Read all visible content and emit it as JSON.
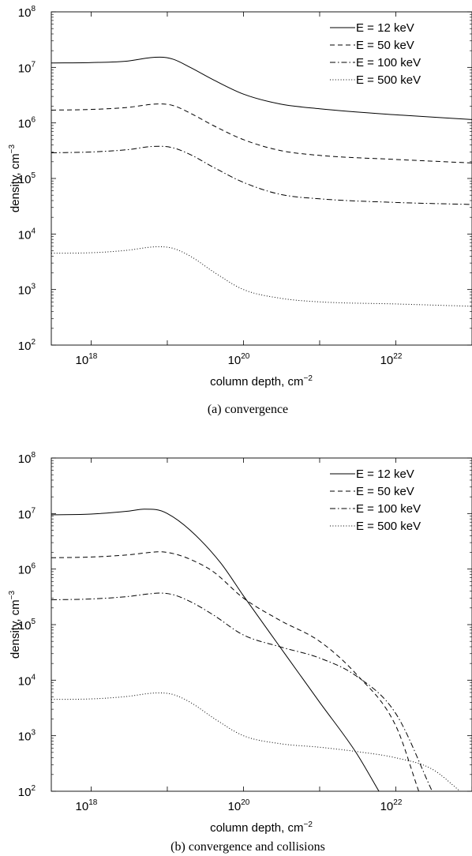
{
  "chart_data": [
    {
      "type": "line",
      "caption": "(a)  convergence",
      "xlabel": "column depth, cm",
      "xlabel_exp": "−2",
      "ylabel": "density, cm",
      "ylabel_exp": "−3",
      "xscale": "log",
      "yscale": "log",
      "xlim": [
        3e+17,
        1e+23
      ],
      "ylim": [
        100,
        100000000
      ],
      "xticks": [
        {
          "value": 1e+18,
          "base": "10",
          "exp": "18"
        },
        {
          "value": 1e+20,
          "base": "10",
          "exp": "20"
        },
        {
          "value": 1e+22,
          "base": "10",
          "exp": "22"
        }
      ],
      "yticks": [
        {
          "value": 100,
          "base": "10",
          "exp": "2"
        },
        {
          "value": 1000,
          "base": "10",
          "exp": "3"
        },
        {
          "value": 10000,
          "base": "10",
          "exp": "4"
        },
        {
          "value": 100000,
          "base": "10",
          "exp": "5"
        },
        {
          "value": 1000000,
          "base": "10",
          "exp": "6"
        },
        {
          "value": 10000000,
          "base": "10",
          "exp": "7"
        },
        {
          "value": 100000000,
          "base": "10",
          "exp": "8"
        }
      ],
      "grid": false,
      "legend_position": "top-right",
      "series": [
        {
          "name": "E = 12 keV",
          "style": "solid",
          "x": [
            3e+17,
            1e+18,
            3e+18,
            6e+18,
            8e+18,
            1.2e+19,
            2e+19,
            4e+19,
            1e+20,
            3e+20,
            1e+21,
            1e+22,
            1e+23
          ],
          "y": [
            12000000,
            12200000,
            13000000,
            15000000,
            15300000,
            14000000,
            10000000,
            6000000,
            3300000,
            2200000,
            1800000,
            1400000,
            1150000
          ]
        },
        {
          "name": "E = 50 keV",
          "style": "dashed",
          "x": [
            3e+17,
            1e+18,
            3e+18,
            6e+18,
            8e+18,
            1.2e+19,
            2e+19,
            4e+19,
            1e+20,
            3e+20,
            1e+21,
            1e+22,
            1e+23
          ],
          "y": [
            1700000,
            1750000,
            1900000,
            2150000,
            2200000,
            2050000,
            1500000,
            900000,
            500000,
            320000,
            260000,
            220000,
            190000
          ]
        },
        {
          "name": "E = 100 keV",
          "style": "dashdot",
          "x": [
            3e+17,
            1e+18,
            3e+18,
            6e+18,
            8e+18,
            1.2e+19,
            2e+19,
            4e+19,
            1e+20,
            3e+20,
            1e+21,
            1e+22,
            1e+23
          ],
          "y": [
            290000,
            300000,
            330000,
            375000,
            380000,
            355000,
            270000,
            160000,
            85000,
            52000,
            43000,
            37000,
            34000
          ]
        },
        {
          "name": "E = 500 keV",
          "style": "dotted",
          "x": [
            3e+17,
            1e+18,
            3e+18,
            6e+18,
            8e+18,
            1.2e+19,
            2e+19,
            4e+19,
            1e+20,
            3e+20,
            1e+21,
            1e+22,
            1e+23
          ],
          "y": [
            4500,
            4600,
            5100,
            5800,
            5900,
            5500,
            4000,
            2100,
            1000,
            700,
            600,
            550,
            500
          ]
        }
      ]
    },
    {
      "type": "line",
      "caption": "(b)  convergence and collisions",
      "xlabel": "column depth, cm",
      "xlabel_exp": "−2",
      "ylabel": "density, cm",
      "ylabel_exp": "−3",
      "xscale": "log",
      "yscale": "log",
      "xlim": [
        3e+17,
        1e+23
      ],
      "ylim": [
        100,
        100000000
      ],
      "xticks": [
        {
          "value": 1e+18,
          "base": "10",
          "exp": "18"
        },
        {
          "value": 1e+20,
          "base": "10",
          "exp": "20"
        },
        {
          "value": 1e+22,
          "base": "10",
          "exp": "22"
        }
      ],
      "yticks": [
        {
          "value": 100,
          "base": "10",
          "exp": "2"
        },
        {
          "value": 1000,
          "base": "10",
          "exp": "3"
        },
        {
          "value": 10000,
          "base": "10",
          "exp": "4"
        },
        {
          "value": 100000,
          "base": "10",
          "exp": "5"
        },
        {
          "value": 1000000,
          "base": "10",
          "exp": "6"
        },
        {
          "value": 10000000,
          "base": "10",
          "exp": "7"
        },
        {
          "value": 100000000,
          "base": "10",
          "exp": "8"
        }
      ],
      "grid": false,
      "legend_position": "top-right",
      "series": [
        {
          "name": "E = 12 keV",
          "style": "solid",
          "x": [
            3e+17,
            1e+18,
            3e+18,
            5e+18,
            7e+18,
            1e+19,
            2e+19,
            5e+19,
            1e+20,
            3e+20,
            1e+21,
            3e+21,
            6e+21
          ],
          "y": [
            9500000,
            9800000,
            11000000,
            12000000,
            11800000,
            10000000,
            5000000,
            1300000,
            330000,
            40000,
            4000,
            500,
            100
          ]
        },
        {
          "name": "E = 50 keV",
          "style": "dashed",
          "x": [
            3e+17,
            1e+18,
            3e+18,
            6e+18,
            8e+18,
            1.2e+19,
            2e+19,
            4e+19,
            1e+20,
            3e+20,
            1e+21,
            3e+21,
            1e+22,
            2e+22
          ],
          "y": [
            1600000,
            1650000,
            1800000,
            2000000,
            2050000,
            1900000,
            1500000,
            900000,
            300000,
            120000,
            50000,
            13000,
            1500,
            100
          ]
        },
        {
          "name": "E = 100 keV",
          "style": "dashdot",
          "x": [
            3e+17,
            1e+18,
            3e+18,
            6e+18,
            8e+18,
            1.2e+19,
            2e+19,
            4e+19,
            1e+20,
            3e+20,
            1e+21,
            3e+21,
            1e+22,
            3e+22
          ],
          "y": [
            280000,
            290000,
            320000,
            360000,
            370000,
            345000,
            260000,
            150000,
            65000,
            40000,
            25000,
            12000,
            2500,
            100
          ]
        },
        {
          "name": "E = 500 keV",
          "style": "dotted",
          "x": [
            3e+17,
            1e+18,
            3e+18,
            6e+18,
            8e+18,
            1.2e+19,
            2e+19,
            4e+19,
            1e+20,
            3e+20,
            1e+21,
            3e+21,
            1e+22,
            3e+22,
            7e+22
          ],
          "y": [
            4500,
            4600,
            5100,
            5800,
            5900,
            5500,
            4000,
            2100,
            1000,
            720,
            620,
            520,
            400,
            250,
            100
          ]
        }
      ]
    }
  ]
}
